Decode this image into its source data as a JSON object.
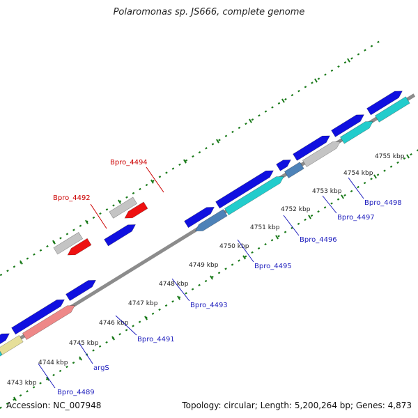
{
  "title": "Polaromonas sp. JS666, complete genome",
  "footer": {
    "accession": "Accession: NC_007948",
    "stats": "Topology: circular; Length: 5,200,264 bp; Genes: 4,873"
  },
  "colors": {
    "backbone": "#8c8c8c",
    "tick": "#1a7a1a",
    "label_blue": "#1d1dbd",
    "label_red": "#cc0000",
    "cds": "#1010e0",
    "grey": "#c4c4c4",
    "red": "#ee1111",
    "cyan": "#22cccc",
    "steel": "#4d82b8",
    "pink": "#ee8888",
    "khaki": "#e6df99",
    "olive": "#b9b26a"
  },
  "tick_labels": [
    {
      "text": "4743 kbp"
    },
    {
      "text": "4744 kbp"
    },
    {
      "text": "4745 kbp"
    },
    {
      "text": "4746 kbp"
    },
    {
      "text": "4747 kbp"
    },
    {
      "text": "4748 kbp"
    },
    {
      "text": "4749 kbp"
    },
    {
      "text": "4750 kbp"
    },
    {
      "text": "4751 kbp"
    },
    {
      "text": "4752 kbp"
    },
    {
      "text": "4753 kbp"
    },
    {
      "text": "4754 kbp"
    },
    {
      "text": "4755 kbp"
    }
  ],
  "gene_labels": [
    {
      "text": "Bpro_4489",
      "color": "blue"
    },
    {
      "text": "argS",
      "color": "blue"
    },
    {
      "text": "Bpro_4491",
      "color": "blue"
    },
    {
      "text": "Bpro_4493",
      "color": "blue"
    },
    {
      "text": "Bpro_4495",
      "color": "blue"
    },
    {
      "text": "Bpro_4496",
      "color": "blue"
    },
    {
      "text": "Bpro_4497",
      "color": "blue"
    },
    {
      "text": "Bpro_4498",
      "color": "blue"
    },
    {
      "text": "Bpro_4492",
      "color": "red"
    },
    {
      "text": "Bpro_4494",
      "color": "red"
    }
  ],
  "features": [
    {
      "kind": "cds",
      "strand": "+",
      "name": "Bpro_4489"
    },
    {
      "kind": "cds",
      "strand": "+",
      "name": "argS"
    },
    {
      "kind": "cds",
      "strand": "+",
      "name": "Bpro_4491"
    },
    {
      "kind": "cds",
      "strand": "+",
      "name": "Bpro_4493"
    },
    {
      "kind": "cds",
      "strand": "-",
      "name": "Bpro_4495"
    },
    {
      "kind": "cds",
      "strand": "+",
      "name": "Bpro_4496"
    },
    {
      "kind": "cds",
      "strand": "+",
      "name": "Bpro_4497"
    },
    {
      "kind": "cds",
      "strand": "+",
      "name": "Bpro_4498"
    },
    {
      "kind": "gene",
      "strand": "-",
      "name": "Bpro_4492"
    },
    {
      "kind": "gene",
      "strand": "-",
      "name": "Bpro_4494"
    }
  ]
}
